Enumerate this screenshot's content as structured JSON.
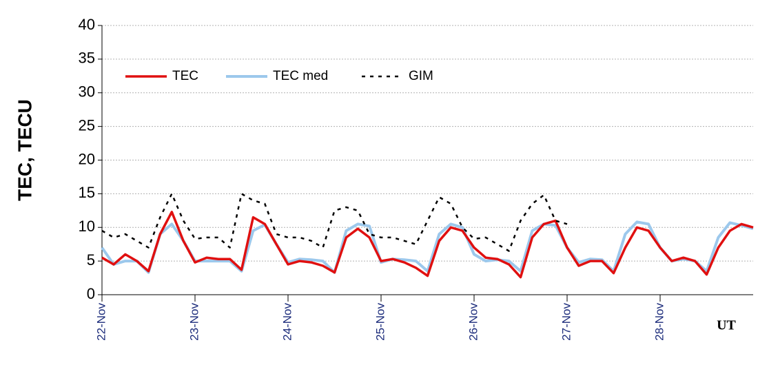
{
  "chart_data": {
    "type": "line",
    "ylabel": "TEC, TECU",
    "xlabel": "UT",
    "x": [
      0,
      3,
      6,
      9,
      12,
      15,
      18,
      21,
      24,
      27,
      30,
      33,
      36,
      39,
      42,
      45,
      48,
      51,
      54,
      57,
      60,
      63,
      66,
      69,
      72,
      75,
      78,
      81,
      84,
      87,
      90,
      93,
      96,
      99,
      102,
      105,
      108,
      111,
      114,
      117,
      120,
      123,
      126,
      129,
      132,
      135,
      138,
      141,
      144,
      147,
      150,
      153,
      156,
      159,
      162,
      165,
      168
    ],
    "xlim": [
      0,
      168
    ],
    "xticks": [
      {
        "value": 0,
        "label": "22-Nov"
      },
      {
        "value": 24,
        "label": "23-Nov"
      },
      {
        "value": 48,
        "label": "24-Nov"
      },
      {
        "value": 72,
        "label": "25-Nov"
      },
      {
        "value": 96,
        "label": "26-Nov"
      },
      {
        "value": 120,
        "label": "27-Nov"
      },
      {
        "value": 144,
        "label": "28-Nov"
      }
    ],
    "ylim": [
      0,
      40
    ],
    "yticks": [
      0,
      5,
      10,
      15,
      20,
      25,
      30,
      35,
      40
    ],
    "grid": true,
    "legend": "top-left",
    "series": [
      {
        "name": "TEC",
        "color": "#e01010",
        "style": "solid",
        "values": [
          5.5,
          4.5,
          6,
          5,
          3.5,
          9,
          12.3,
          8,
          4.8,
          5.5,
          5.3,
          5.3,
          3.7,
          11.5,
          10.5,
          7.5,
          4.5,
          5,
          4.8,
          4.3,
          3.3,
          8.5,
          9.8,
          8.5,
          5,
          5.3,
          4.8,
          4,
          2.8,
          8,
          10,
          9.5,
          7,
          5.5,
          5.3,
          4.5,
          2.6,
          8.5,
          10.5,
          11,
          7,
          4.3,
          5,
          5,
          3.2,
          7,
          10,
          9.5,
          7,
          5,
          5.5,
          5,
          3,
          7,
          9.5,
          10.5,
          10
        ]
      },
      {
        "name": "TEC med",
        "color": "#9cc8ec",
        "style": "solid",
        "values": [
          7,
          4.5,
          5,
          5,
          3.3,
          9,
          10.5,
          8,
          5,
          5,
          5,
          5,
          3.5,
          9.5,
          10.4,
          7.5,
          4.8,
          5.3,
          5.2,
          5,
          3.3,
          9.5,
          10.5,
          10.2,
          4.8,
          5.3,
          5.2,
          5,
          3.5,
          9,
          10.5,
          10,
          6,
          5,
          5.2,
          5,
          3.5,
          9.5,
          10.5,
          10.3,
          7,
          4.8,
          5.3,
          5.2,
          3.5,
          9,
          10.8,
          10.5,
          7,
          5,
          5.3,
          5,
          3.5,
          8.5,
          10.7,
          10.3,
          9.8
        ]
      },
      {
        "name": "GIM",
        "color": "#000000",
        "style": "dotted",
        "values": [
          9.5,
          8.5,
          9,
          8,
          7,
          11.5,
          15,
          11,
          8.3,
          8.5,
          8.5,
          7,
          15,
          14,
          13.5,
          9,
          8.5,
          8.5,
          8,
          7,
          12.5,
          13,
          12.5,
          9,
          8.5,
          8.5,
          8,
          7.5,
          11,
          14.5,
          13.5,
          10,
          8.3,
          8.5,
          7.5,
          6.5,
          11,
          13.5,
          14.8,
          11,
          10.5,
          null,
          null,
          null,
          null,
          null,
          null,
          null,
          null,
          null,
          null,
          null,
          null,
          null,
          null,
          null,
          null
        ]
      }
    ]
  }
}
